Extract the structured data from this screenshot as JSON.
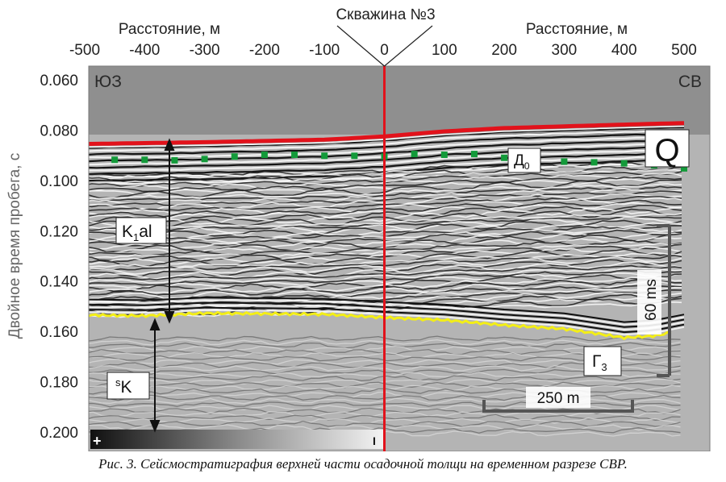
{
  "figure": {
    "caption": "Рис. 3. Сейсмостратиграфия верхней части осадочной толщи на временном разрезе СВР."
  },
  "chart_data": {
    "type": "seismic-section",
    "x_label_left": "Расстояние, м",
    "x_label_right": "Расстояние, м",
    "ylabel": "Двойное время пробега, с",
    "well_label": "Скважина №3",
    "x_ticks": [
      -500,
      -400,
      -300,
      -200,
      -100,
      0,
      100,
      200,
      300,
      400,
      500
    ],
    "y_ticks": [
      "0.060",
      "0.080",
      "0.100",
      "0.120",
      "0.140",
      "0.160",
      "0.180",
      "0.200"
    ],
    "xlim": [
      -500,
      500
    ],
    "ylim": [
      0.06,
      0.2
    ],
    "well_x": 0,
    "corner_left": "ЮЗ",
    "corner_right": "СВ",
    "colors": {
      "well": "#e2121b",
      "seafloor": "#e2121b",
      "horizon_D0": "#139a3a",
      "horizon_G3": "#f3ee17",
      "water": "#8f8f8f",
      "scale_bar": "#555555"
    },
    "horizons": {
      "seafloor": {
        "x": [
          -500,
          -300,
          -100,
          0,
          100,
          200,
          300,
          400,
          500
        ],
        "t": [
          0.0855,
          0.0848,
          0.0838,
          0.0825,
          0.0805,
          0.0792,
          0.0785,
          0.0778,
          0.0772
        ]
      },
      "D0": {
        "label": "Д",
        "subscript": "0",
        "x": [
          -500,
          -450,
          -400,
          -350,
          -300,
          -250,
          -200,
          -150,
          -100,
          -50,
          0,
          50,
          100,
          150,
          200,
          250,
          300,
          350,
          400,
          450,
          500
        ],
        "t": [
          0.0925,
          0.0918,
          0.0918,
          0.092,
          0.0915,
          0.0905,
          0.0898,
          0.0898,
          0.0902,
          0.0902,
          0.0905,
          0.0895,
          0.0898,
          0.0895,
          0.091,
          0.092,
          0.0925,
          0.0928,
          0.0932,
          0.094,
          0.0952
        ]
      },
      "G3": {
        "label": "Г",
        "subscript": "3",
        "x": [
          -500,
          -400,
          -300,
          -200,
          -100,
          0,
          100,
          200,
          300,
          400,
          450,
          500
        ],
        "t": [
          0.1535,
          0.1538,
          0.1528,
          0.153,
          0.1532,
          0.1545,
          0.1555,
          0.1575,
          0.159,
          0.1625,
          0.1618,
          0.1595
        ]
      }
    },
    "units": [
      {
        "label": "K",
        "subscript": "1",
        "suffix": "al"
      },
      {
        "label": "K",
        "superscript": "s",
        "suffix": ""
      },
      {
        "label": "Q"
      }
    ],
    "scale_time_label": "60 ms",
    "scale_distance_label": "250 m",
    "polarity_plus": "+",
    "polarity_minus": "I"
  }
}
